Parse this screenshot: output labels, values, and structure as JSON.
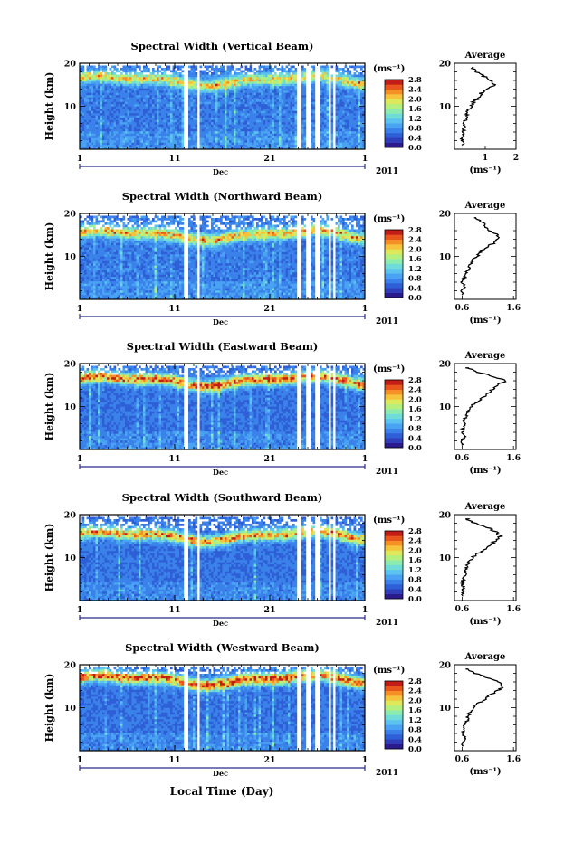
{
  "figure": {
    "xlabel_bottom": "Local Time (Day)",
    "month_label": "Dec",
    "year_label": "2011",
    "ylabel": "Height (km)",
    "cbar_unit_label": "(ms⁻¹)",
    "avg_title": "Average",
    "avg_xlabel": "(ms⁻¹)",
    "colors": {
      "palette": [
        "#2b1a8c",
        "#2f3db8",
        "#2f5fd6",
        "#3a82ea",
        "#49a3f2",
        "#5cc3ef",
        "#6fdcd8",
        "#8cecb0",
        "#b5ef7e",
        "#dde85a",
        "#f5c43c",
        "#f59027",
        "#e8561d",
        "#c21d17"
      ],
      "background": "#ffffff",
      "axis": "#000000",
      "axis_line_blue": "#2a2a8c"
    }
  },
  "chart_data": [
    {
      "type": "heatmap",
      "title": "Spectral Width (Vertical Beam)",
      "xlabel": "Dec",
      "ylabel": "Height (km)",
      "xlim": [
        1,
        31
      ],
      "ylim": [
        0,
        20
      ],
      "x_ticks": [
        "1",
        "11",
        "21",
        "1"
      ],
      "y_ticks": [
        "10",
        "20"
      ],
      "colorbar": {
        "min": 0.0,
        "max": 2.8,
        "ticks": [
          "0.0",
          "0.4",
          "0.8",
          "1.2",
          "1.6",
          "2.0",
          "2.4",
          "2.8"
        ]
      },
      "gaps_days": [
        12.2,
        13.5,
        24.0,
        25.0,
        26.1,
        27.3,
        27.8
      ],
      "profile_shape": {
        "low_level": 0.5,
        "peak_height_km": 16.0,
        "peak_level": 2.0,
        "top_height_km": 19.0
      },
      "average_profile": {
        "xlim": [
          0,
          2
        ],
        "x_ticks": [
          "1",
          "2"
        ],
        "height_km": [
          1,
          2,
          3,
          4,
          5,
          6,
          7,
          8,
          9,
          10,
          11,
          12,
          13,
          14,
          15,
          16,
          17,
          18,
          19
        ],
        "width": [
          0.28,
          0.22,
          0.3,
          0.28,
          0.3,
          0.32,
          0.36,
          0.4,
          0.45,
          0.55,
          0.62,
          0.78,
          0.85,
          1.1,
          1.3,
          1.2,
          0.95,
          0.7,
          0.55
        ]
      }
    },
    {
      "type": "heatmap",
      "title": "Spectral Width (Northward Beam)",
      "xlabel": "Dec",
      "ylabel": "Height (km)",
      "xlim": [
        1,
        31
      ],
      "ylim": [
        0,
        20
      ],
      "x_ticks": [
        "1",
        "11",
        "21",
        "1"
      ],
      "y_ticks": [
        "10",
        "20"
      ],
      "colorbar": {
        "min": 0.0,
        "max": 2.8,
        "ticks": [
          "0.0",
          "0.4",
          "0.8",
          "1.2",
          "1.6",
          "2.0",
          "2.4",
          "2.8"
        ]
      },
      "gaps_days": [
        12.2,
        13.5,
        24.0,
        25.0,
        26.1,
        27.3,
        27.8
      ],
      "profile_shape": {
        "low_level": 0.5,
        "peak_height_km": 15.0,
        "peak_level": 2.2,
        "top_height_km": 19.0
      },
      "average_profile": {
        "xlim": [
          0.45,
          1.65
        ],
        "x_ticks": [
          "0.6",
          "1.6"
        ],
        "height_km": [
          1,
          2,
          3,
          4,
          5,
          6,
          7,
          8,
          9,
          10,
          11,
          12,
          13,
          14,
          15,
          16,
          17,
          18,
          19
        ],
        "width": [
          0.62,
          0.6,
          0.66,
          0.6,
          0.65,
          0.68,
          0.72,
          0.75,
          0.8,
          0.9,
          0.95,
          1.05,
          1.2,
          1.3,
          1.28,
          1.15,
          1.05,
          1.0,
          0.85
        ]
      }
    },
    {
      "type": "heatmap",
      "title": "Spectral Width (Eastward Beam)",
      "xlabel": "Dec",
      "ylabel": "Height (km)",
      "xlim": [
        1,
        31
      ],
      "ylim": [
        0,
        20
      ],
      "x_ticks": [
        "1",
        "11",
        "21",
        "1"
      ],
      "y_ticks": [
        "10",
        "20"
      ],
      "colorbar": {
        "min": 0.0,
        "max": 2.8,
        "ticks": [
          "0.0",
          "0.4",
          "0.8",
          "1.2",
          "1.6",
          "2.0",
          "2.4",
          "2.8"
        ]
      },
      "gaps_days": [
        12.2,
        13.5,
        24.0,
        25.0,
        26.1,
        27.3,
        27.8
      ],
      "profile_shape": {
        "low_level": 0.45,
        "peak_height_km": 16.0,
        "peak_level": 2.5,
        "top_height_km": 19.0
      },
      "average_profile": {
        "xlim": [
          0.45,
          1.65
        ],
        "x_ticks": [
          "0.6",
          "1.6"
        ],
        "height_km": [
          1,
          2,
          3,
          4,
          5,
          6,
          7,
          8,
          9,
          10,
          11,
          12,
          13,
          14,
          15,
          16,
          17,
          18,
          19
        ],
        "width": [
          0.62,
          0.6,
          0.64,
          0.6,
          0.62,
          0.64,
          0.66,
          0.68,
          0.72,
          0.78,
          0.88,
          0.98,
          1.1,
          1.18,
          1.3,
          1.45,
          1.2,
          0.9,
          0.7
        ]
      }
    },
    {
      "type": "heatmap",
      "title": "Spectral Width (Southward Beam)",
      "xlabel": "Dec",
      "ylabel": "Height (km)",
      "xlim": [
        1,
        31
      ],
      "ylim": [
        0,
        20
      ],
      "x_ticks": [
        "1",
        "11",
        "21",
        "1"
      ],
      "y_ticks": [
        "10",
        "20"
      ],
      "colorbar": {
        "min": 0.0,
        "max": 2.8,
        "ticks": [
          "0.0",
          "0.4",
          "0.8",
          "1.2",
          "1.6",
          "2.0",
          "2.4",
          "2.8"
        ]
      },
      "gaps_days": [
        12.2,
        13.5,
        24.0,
        25.0,
        26.1,
        27.3,
        27.8
      ],
      "profile_shape": {
        "low_level": 0.45,
        "peak_height_km": 15.0,
        "peak_level": 2.3,
        "top_height_km": 19.0
      },
      "average_profile": {
        "xlim": [
          0.45,
          1.65
        ],
        "x_ticks": [
          "0.6",
          "1.6"
        ],
        "height_km": [
          1,
          2,
          3,
          4,
          5,
          6,
          7,
          8,
          9,
          10,
          11,
          12,
          13,
          14,
          15,
          16,
          17,
          18,
          19
        ],
        "width": [
          0.6,
          0.62,
          0.64,
          0.6,
          0.62,
          0.66,
          0.68,
          0.7,
          0.74,
          0.8,
          0.92,
          1.05,
          1.15,
          1.25,
          1.35,
          1.25,
          1.1,
          0.85,
          0.7
        ]
      }
    },
    {
      "type": "heatmap",
      "title": "Spectral Width (Westward Beam)",
      "xlabel": "Dec",
      "ylabel": "Height (km)",
      "xlim": [
        1,
        31
      ],
      "ylim": [
        0,
        20
      ],
      "x_ticks": [
        "1",
        "11",
        "21",
        "1"
      ],
      "y_ticks": [
        "10",
        "20"
      ],
      "colorbar": {
        "min": 0.0,
        "max": 2.8,
        "ticks": [
          "0.0",
          "0.4",
          "0.8",
          "1.2",
          "1.6",
          "2.0",
          "2.4",
          "2.8"
        ]
      },
      "gaps_days": [
        12.2,
        13.5,
        24.0,
        25.0,
        26.1,
        27.3,
        27.8
      ],
      "profile_shape": {
        "low_level": 0.45,
        "peak_height_km": 16.5,
        "peak_level": 2.6,
        "top_height_km": 19.0
      },
      "average_profile": {
        "xlim": [
          0.45,
          1.65
        ],
        "x_ticks": [
          "0.6",
          "1.6"
        ],
        "height_km": [
          1,
          2,
          3,
          4,
          5,
          6,
          7,
          8,
          9,
          10,
          11,
          12,
          13,
          14,
          15,
          16,
          17,
          18,
          19
        ],
        "width": [
          0.62,
          0.6,
          0.66,
          0.62,
          0.64,
          0.66,
          0.7,
          0.72,
          0.75,
          0.82,
          0.92,
          1.05,
          1.15,
          1.3,
          1.4,
          1.3,
          1.1,
          0.85,
          0.7
        ]
      }
    }
  ]
}
